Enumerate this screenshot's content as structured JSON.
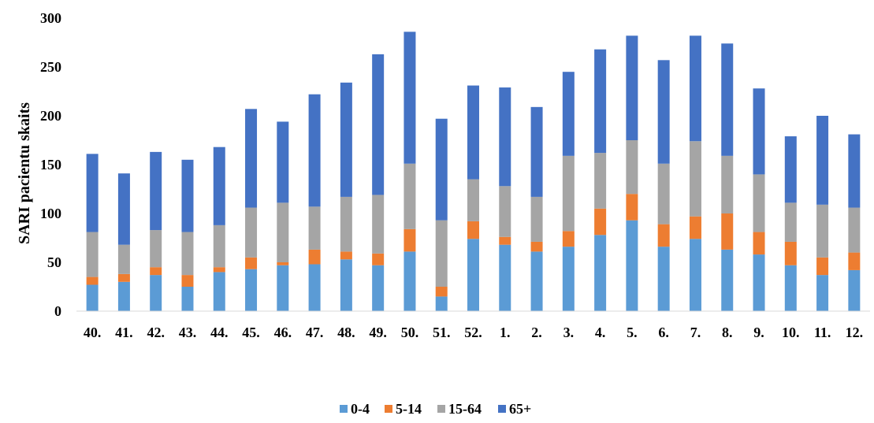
{
  "chart_data": {
    "type": "bar",
    "stacked": true,
    "title": "",
    "xlabel": "",
    "ylabel": "SARI pacientu skaits",
    "ylim": [
      0,
      300
    ],
    "yticks": [
      "0",
      "50",
      "100",
      "150",
      "200",
      "250",
      "300"
    ],
    "grid": false,
    "legend_position": "bottom",
    "categories": [
      "40.",
      "41.",
      "42.",
      "43.",
      "44.",
      "45.",
      "46.",
      "47.",
      "48.",
      "49.",
      "50.",
      "51.",
      "52.",
      "1.",
      "2.",
      "3.",
      "4.",
      "5.",
      "6.",
      "7.",
      "8.",
      "9.",
      "10.",
      "11.",
      "12."
    ],
    "series": [
      {
        "name": "0-4",
        "color": "#5B9BD5",
        "values": [
          27,
          30,
          37,
          25,
          40,
          43,
          47,
          48,
          53,
          47,
          61,
          15,
          74,
          68,
          61,
          66,
          78,
          93,
          66,
          74,
          63,
          58,
          47,
          37,
          42
        ]
      },
      {
        "name": "5-14",
        "color": "#ED7D31",
        "values": [
          8,
          8,
          8,
          12,
          5,
          12,
          3,
          15,
          8,
          12,
          23,
          10,
          18,
          8,
          10,
          16,
          27,
          27,
          23,
          23,
          37,
          23,
          24,
          18,
          18
        ]
      },
      {
        "name": "15-64",
        "color": "#A5A5A5",
        "values": [
          46,
          30,
          38,
          44,
          43,
          51,
          61,
          44,
          56,
          60,
          67,
          68,
          43,
          52,
          46,
          77,
          57,
          55,
          62,
          77,
          59,
          59,
          40,
          54,
          46
        ]
      },
      {
        "name": "65+",
        "color": "#4472C4",
        "values": [
          80,
          73,
          80,
          74,
          80,
          101,
          83,
          115,
          117,
          144,
          135,
          104,
          96,
          101,
          92,
          86,
          106,
          107,
          106,
          108,
          115,
          88,
          68,
          91,
          75
        ]
      }
    ]
  }
}
